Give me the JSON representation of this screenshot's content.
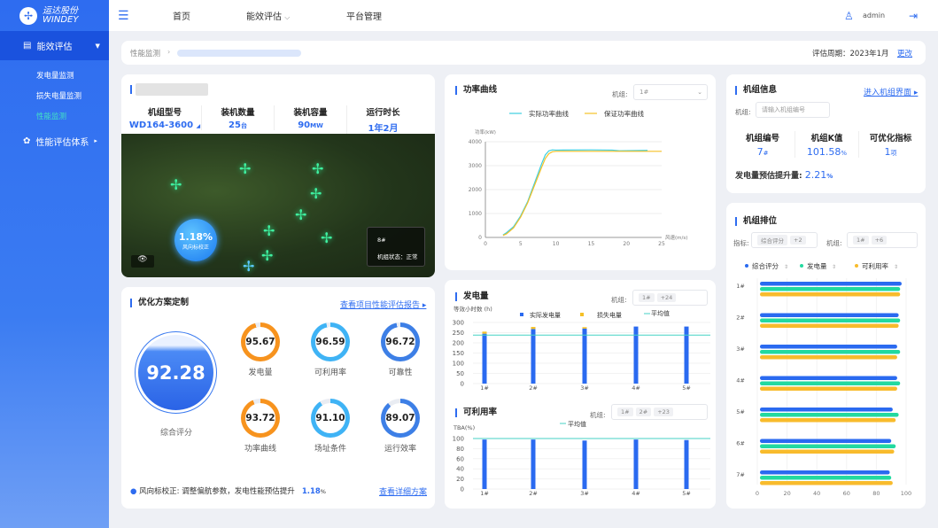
{
  "brand": {
    "name_cn": "运达股份",
    "name_en": "WINDEY"
  },
  "sidebar": {
    "items": [
      {
        "label": "能效评估",
        "children": [
          "发电量监测",
          "损失电量监测",
          "性能监测"
        ]
      },
      {
        "label": "性能评估体系"
      }
    ]
  },
  "topbar": {
    "nav": [
      "首页",
      "能效评估",
      "平台管理"
    ],
    "user": "admin"
  },
  "breadcrumb": {
    "root": "性能监测",
    "period_label": "评估周期：",
    "period": "2023年1月",
    "change": "更改"
  },
  "farm": {
    "stats": [
      {
        "k": "机组型号",
        "v": "WD164-3600"
      },
      {
        "k": "装机数量",
        "v": "25",
        "u": "台"
      },
      {
        "k": "装机容量",
        "v": "90",
        "u": "MW"
      },
      {
        "k": "运行时长",
        "v": "1年2月"
      }
    ],
    "badge_value": "1.18%",
    "badge_label": "风向标校正",
    "popup_id": "8#",
    "popup_status": "机组状态：正常"
  },
  "plan": {
    "title": "优化方案定制",
    "report_link": "查看项目性能评估报告",
    "overall": "92.28",
    "overall_label": "综合评分",
    "rings": [
      {
        "v": "95.67",
        "l": "发电量",
        "p": 95.67,
        "c": "#f7931e"
      },
      {
        "v": "96.59",
        "l": "可利用率",
        "p": 96.59,
        "c": "#3fb3f5"
      },
      {
        "v": "96.72",
        "l": "可靠性",
        "p": 96.72,
        "c": "#3d7fe6"
      },
      {
        "v": "93.72",
        "l": "功率曲线",
        "p": 93.72,
        "c": "#f7931e"
      },
      {
        "v": "91.10",
        "l": "场址条件",
        "p": 91.1,
        "c": "#3fb3f5"
      },
      {
        "v": "89.07",
        "l": "运行效率",
        "p": 89.07,
        "c": "#3d7fe6"
      }
    ],
    "tip": "风向标校正: 调整偏航参数，发电性能预估提升",
    "tip_value": "1.18",
    "tip_unit": "%",
    "detail_link": "查看详细方案"
  },
  "power": {
    "title": "功率曲线",
    "unit_label": "机组:",
    "unit_value": "1#"
  },
  "energy": {
    "title": "发电量",
    "unit_label": "机组:",
    "tags": [
      "1#",
      "+24"
    ]
  },
  "avail": {
    "title": "可利用率",
    "unit_label": "机组:",
    "tags": [
      "1#",
      "2#",
      "+23"
    ]
  },
  "info": {
    "title": "机组信息",
    "link": "进入机组界面",
    "unit_label": "机组:",
    "placeholder": "请输入机组编号",
    "stats": [
      {
        "k": "机组编号",
        "v": "7",
        "u": "#"
      },
      {
        "k": "机组K值",
        "v": "101.58",
        "u": "%"
      },
      {
        "k": "可优化指标",
        "v": "1",
        "u": "项"
      }
    ],
    "uplift_label": "发电量预估提升量:",
    "uplift": "2.21",
    "uplift_unit": "%"
  },
  "rank": {
    "title": "机组排位",
    "metric_label": "指标:",
    "metric_tags": [
      "综合评分",
      "+2"
    ],
    "unit_label": "机组:",
    "unit_tags": [
      "1#",
      "+6"
    ]
  },
  "chart_data": [
    {
      "type": "line",
      "title": "功率曲线",
      "ylabel": "功率(kW)",
      "xlabel": "风速(m/s)",
      "xlim": [
        0,
        25
      ],
      "ylim": [
        0,
        4000
      ],
      "xticks": [
        0,
        5,
        10,
        15,
        20,
        25
      ],
      "yticks": [
        0,
        1000,
        2000,
        3000,
        4000
      ],
      "legend": "top",
      "series": [
        {
          "name": "实际功率曲线",
          "color": "#3ccfe0",
          "x": [
            2.5,
            3,
            4,
            5,
            6,
            7,
            8,
            8.5,
            9,
            9.5,
            10,
            15,
            18,
            19,
            23
          ],
          "y": [
            100,
            200,
            450,
            900,
            1500,
            2300,
            3100,
            3450,
            3620,
            3660,
            3650,
            3660,
            3650,
            3620,
            3640
          ]
        },
        {
          "name": "保证功率曲线",
          "color": "#f5c026",
          "x": [
            2.5,
            3,
            4,
            5,
            6,
            7,
            8,
            8.5,
            9,
            9.5,
            10,
            25
          ],
          "y": [
            80,
            150,
            400,
            850,
            1450,
            2200,
            2950,
            3300,
            3500,
            3580,
            3600,
            3600
          ]
        }
      ]
    },
    {
      "type": "bar",
      "title": "发电量",
      "ylabel": "等效小时数 (h)",
      "ylim": [
        0,
        300
      ],
      "yticks": [
        0,
        50,
        100,
        150,
        200,
        250,
        300
      ],
      "categories": [
        "1#",
        "2#",
        "3#",
        "4#",
        "5#"
      ],
      "legend": "top",
      "series": [
        {
          "name": "实际发电量",
          "color": "#2a6af0",
          "values": [
            245,
            268,
            270,
            280,
            280
          ]
        },
        {
          "name": "损失电量",
          "color": "#f5c026",
          "values": [
            10,
            10,
            7,
            0,
            0
          ]
        }
      ],
      "average": {
        "name": "平均值",
        "value": 238,
        "color": "#44d2c4"
      }
    },
    {
      "type": "bar",
      "title": "可利用率",
      "ylabel": "TBA(%)",
      "ylim": [
        0,
        100
      ],
      "yticks": [
        0,
        20,
        40,
        60,
        80,
        100
      ],
      "categories": [
        "1#",
        "2#",
        "3#",
        "4#",
        "5#"
      ],
      "series": [
        {
          "color": "#2a6af0",
          "values": [
            98,
            98,
            96,
            98,
            97
          ]
        }
      ],
      "average": {
        "name": "平均值",
        "value": 100,
        "color": "#44d2c4"
      }
    },
    {
      "type": "bar",
      "orientation": "horizontal",
      "title": "机组排位",
      "xlim": [
        0,
        100
      ],
      "xticks": [
        0,
        20,
        40,
        60,
        80,
        100
      ],
      "categories": [
        "1#",
        "2#",
        "3#",
        "4#",
        "5#",
        "6#",
        "7#"
      ],
      "legend": "top",
      "series": [
        {
          "name": "综合评分",
          "color": "#2a6af0",
          "values": [
            97,
            95,
            94,
            94,
            91,
            90,
            89
          ]
        },
        {
          "name": "发电量",
          "color": "#23d9a0",
          "values": [
            96,
            96,
            96,
            96,
            95,
            93,
            90
          ]
        },
        {
          "name": "可利用率",
          "color": "#f8bb2c",
          "values": [
            96,
            95,
            94,
            94,
            93,
            92,
            91
          ]
        }
      ]
    }
  ]
}
